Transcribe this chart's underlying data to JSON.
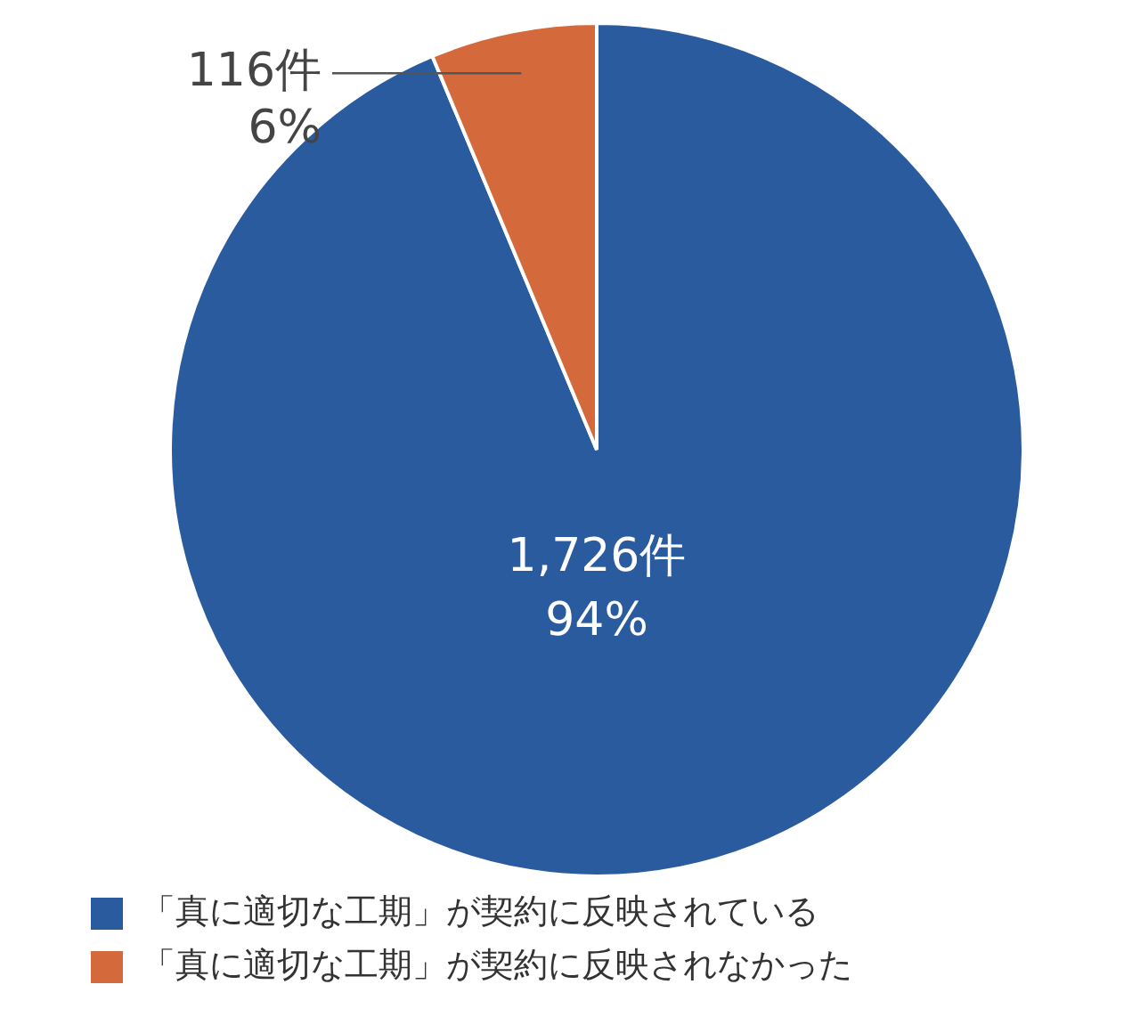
{
  "chart_data": {
    "type": "pie",
    "categories": [
      "「真に適切な工期」が契約に反映されている",
      "「真に適切な工期」が契約に反映されなかった"
    ],
    "values": [
      1726,
      116
    ],
    "colors": [
      "#2a5b9e",
      "#d4693b"
    ],
    "value_labels": [
      "1,726件\n94%",
      "116件\n6%"
    ],
    "legend": "bottom"
  }
}
